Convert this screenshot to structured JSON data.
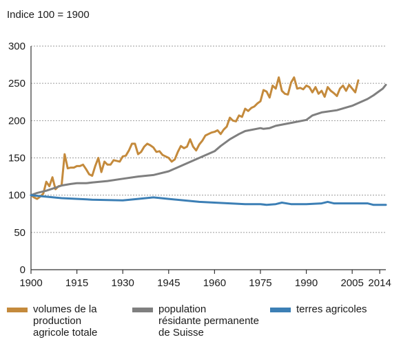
{
  "chart_data": {
    "type": "line",
    "subtitle": "Indice 100 = 1900",
    "xlim": [
      1900,
      2016
    ],
    "ylim": [
      0,
      300
    ],
    "x_ticks": [
      "1900",
      "1915",
      "1930",
      "1945",
      "1960",
      "1975",
      "1990",
      "2005",
      "2014"
    ],
    "y_ticks": [
      "0",
      "50",
      "100",
      "150",
      "200",
      "250",
      "300"
    ],
    "grid": "horizontal-dashed",
    "legend_position": "bottom",
    "series": [
      {
        "name": "volumes de la\nproduction\nagricole totale",
        "color": "#c48a3c",
        "points": [
          [
            1900,
            100
          ],
          [
            1901,
            97
          ],
          [
            1902,
            95
          ],
          [
            1903,
            98
          ],
          [
            1904,
            102
          ],
          [
            1905,
            118
          ],
          [
            1906,
            112
          ],
          [
            1907,
            124
          ],
          [
            1908,
            108
          ],
          [
            1909,
            112
          ],
          [
            1910,
            113
          ],
          [
            1911,
            155
          ],
          [
            1912,
            136
          ],
          [
            1913,
            137
          ],
          [
            1914,
            137
          ],
          [
            1915,
            139
          ],
          [
            1916,
            139
          ],
          [
            1917,
            141
          ],
          [
            1918,
            135
          ],
          [
            1919,
            128
          ],
          [
            1920,
            126
          ],
          [
            1921,
            139
          ],
          [
            1922,
            150
          ],
          [
            1923,
            131
          ],
          [
            1924,
            145
          ],
          [
            1925,
            141
          ],
          [
            1926,
            141
          ],
          [
            1927,
            147
          ],
          [
            1928,
            146
          ],
          [
            1929,
            145
          ],
          [
            1930,
            152
          ],
          [
            1931,
            153
          ],
          [
            1932,
            160
          ],
          [
            1933,
            169
          ],
          [
            1934,
            169
          ],
          [
            1935,
            155
          ],
          [
            1936,
            158
          ],
          [
            1937,
            165
          ],
          [
            1938,
            169
          ],
          [
            1939,
            167
          ],
          [
            1940,
            164
          ],
          [
            1941,
            158
          ],
          [
            1942,
            159
          ],
          [
            1943,
            154
          ],
          [
            1944,
            152
          ],
          [
            1945,
            150
          ],
          [
            1946,
            145
          ],
          [
            1947,
            148
          ],
          [
            1948,
            158
          ],
          [
            1949,
            166
          ],
          [
            1950,
            163
          ],
          [
            1951,
            165
          ],
          [
            1952,
            175
          ],
          [
            1953,
            165
          ],
          [
            1954,
            160
          ],
          [
            1955,
            168
          ],
          [
            1956,
            173
          ],
          [
            1957,
            180
          ],
          [
            1958,
            182
          ],
          [
            1959,
            184
          ],
          [
            1960,
            185
          ],
          [
            1961,
            187
          ],
          [
            1962,
            182
          ],
          [
            1963,
            188
          ],
          [
            1964,
            192
          ],
          [
            1965,
            204
          ],
          [
            1966,
            200
          ],
          [
            1967,
            199
          ],
          [
            1968,
            207
          ],
          [
            1969,
            205
          ],
          [
            1970,
            216
          ],
          [
            1971,
            213
          ],
          [
            1972,
            217
          ],
          [
            1973,
            219
          ],
          [
            1974,
            223
          ],
          [
            1975,
            226
          ],
          [
            1976,
            241
          ],
          [
            1977,
            239
          ],
          [
            1978,
            231
          ],
          [
            1979,
            247
          ],
          [
            1980,
            243
          ],
          [
            1981,
            258
          ],
          [
            1982,
            240
          ],
          [
            1983,
            236
          ],
          [
            1984,
            235
          ],
          [
            1985,
            251
          ],
          [
            1986,
            258
          ],
          [
            1987,
            243
          ],
          [
            1988,
            244
          ],
          [
            1989,
            242
          ],
          [
            1990,
            247
          ],
          [
            1991,
            245
          ],
          [
            1992,
            238
          ],
          [
            1993,
            245
          ],
          [
            1994,
            236
          ],
          [
            1995,
            240
          ],
          [
            1996,
            232
          ],
          [
            1997,
            245
          ],
          [
            1998,
            240
          ],
          [
            1999,
            237
          ],
          [
            2000,
            233
          ],
          [
            2001,
            243
          ],
          [
            2002,
            247
          ],
          [
            2003,
            240
          ],
          [
            2004,
            248
          ],
          [
            2005,
            243
          ],
          [
            2006,
            238
          ],
          [
            2007,
            254
          ]
        ]
      },
      {
        "name": "population\nrésidante permanente\nde Suisse",
        "color": "#7f7f7f",
        "points": [
          [
            1900,
            100
          ],
          [
            1902,
            103
          ],
          [
            1905,
            106
          ],
          [
            1908,
            110
          ],
          [
            1910,
            113
          ],
          [
            1913,
            115
          ],
          [
            1915,
            116
          ],
          [
            1918,
            116
          ],
          [
            1920,
            117
          ],
          [
            1925,
            119
          ],
          [
            1930,
            122
          ],
          [
            1935,
            125
          ],
          [
            1940,
            127
          ],
          [
            1945,
            132
          ],
          [
            1950,
            141
          ],
          [
            1955,
            150
          ],
          [
            1960,
            159
          ],
          [
            1962,
            166
          ],
          [
            1965,
            175
          ],
          [
            1968,
            182
          ],
          [
            1970,
            186
          ],
          [
            1975,
            190
          ],
          [
            1976,
            189
          ],
          [
            1978,
            190
          ],
          [
            1980,
            193
          ],
          [
            1985,
            197
          ],
          [
            1990,
            201
          ],
          [
            1992,
            207
          ],
          [
            1995,
            211
          ],
          [
            2000,
            214
          ],
          [
            2005,
            220
          ],
          [
            2010,
            229
          ],
          [
            2012,
            234
          ],
          [
            2014,
            240
          ],
          [
            2015,
            243
          ],
          [
            2016,
            248
          ]
        ]
      },
      {
        "name": "terres agricoles",
        "color": "#3c7fb5",
        "points": [
          [
            1900,
            100
          ],
          [
            1910,
            96
          ],
          [
            1920,
            94
          ],
          [
            1930,
            93
          ],
          [
            1935,
            95
          ],
          [
            1940,
            97
          ],
          [
            1945,
            95
          ],
          [
            1950,
            93
          ],
          [
            1955,
            91
          ],
          [
            1960,
            90
          ],
          [
            1965,
            89
          ],
          [
            1970,
            88
          ],
          [
            1975,
            88
          ],
          [
            1977,
            87
          ],
          [
            1980,
            88
          ],
          [
            1982,
            90
          ],
          [
            1985,
            88
          ],
          [
            1990,
            88
          ],
          [
            1995,
            89
          ],
          [
            1997,
            91
          ],
          [
            1999,
            89
          ],
          [
            2000,
            89
          ],
          [
            2005,
            89
          ],
          [
            2010,
            89
          ],
          [
            2012,
            87
          ],
          [
            2016,
            87
          ]
        ]
      }
    ]
  }
}
